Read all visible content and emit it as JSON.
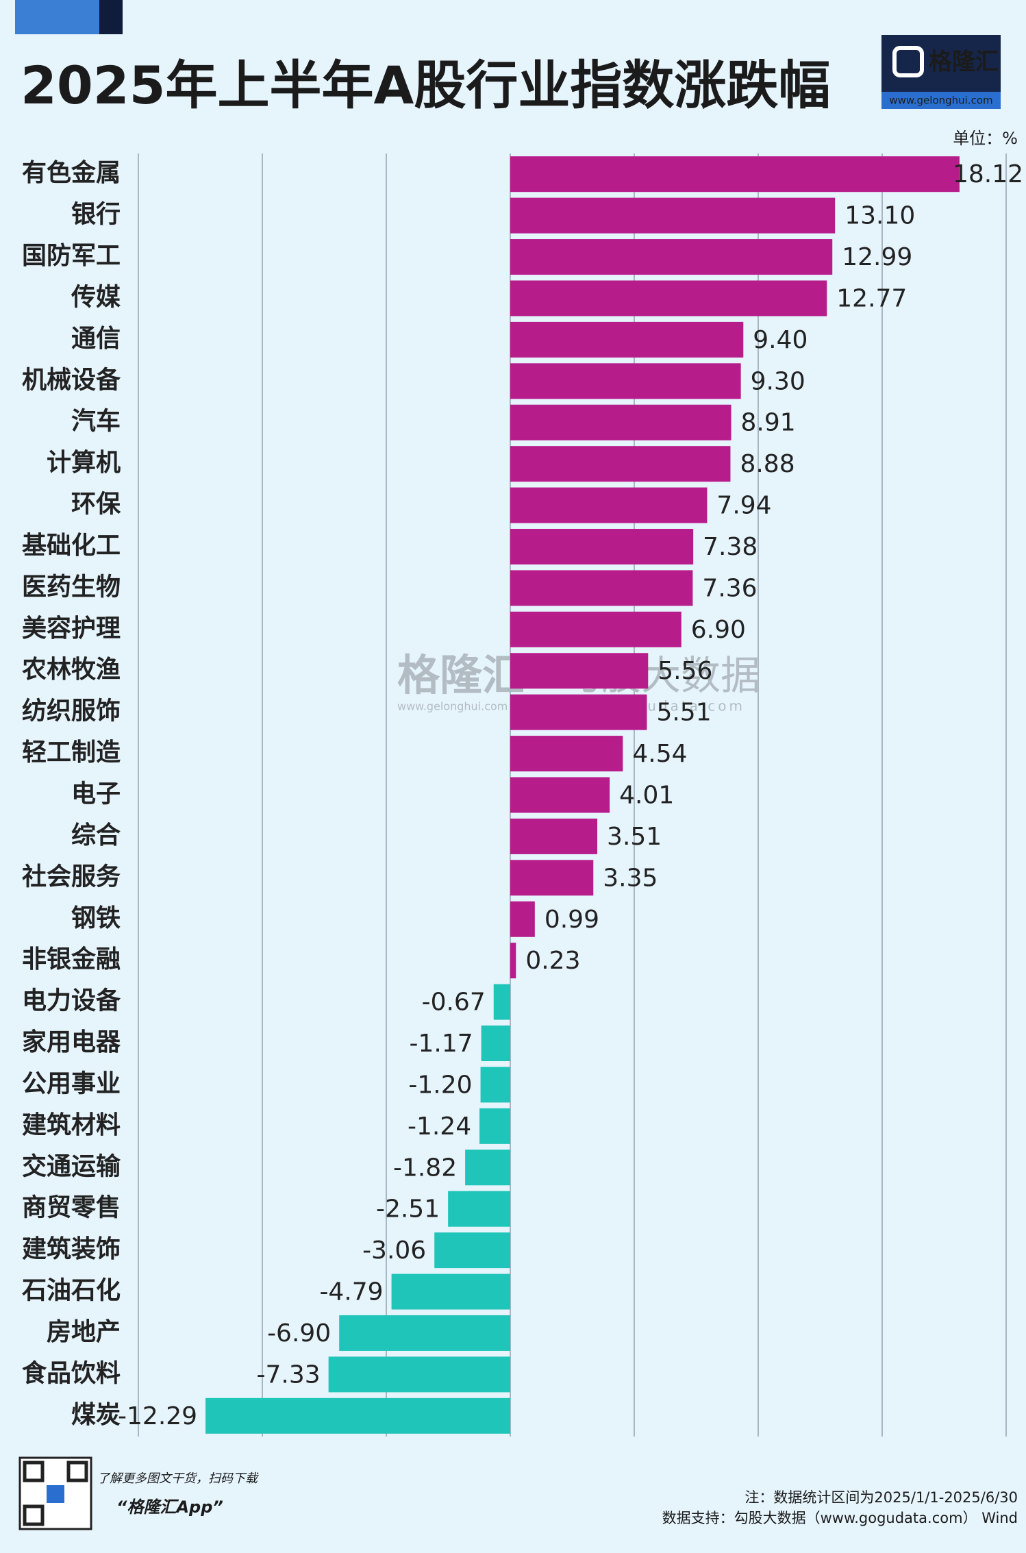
{
  "chart_data": {
    "type": "barh",
    "title": "2025年上半年A股行业指数涨跌幅",
    "unit": "单位：%",
    "categories": [
      "有色金属",
      "银行",
      "国防军工",
      "传媒",
      "通信",
      "机械设备",
      "汽车",
      "计算机",
      "环保",
      "基础化工",
      "医药生物",
      "美容护理",
      "农林牧渔",
      "纺织服饰",
      "轻工制造",
      "电子",
      "综合",
      "社会服务",
      "钢铁",
      "非银金融",
      "电力设备",
      "家用电器",
      "公用事业",
      "建筑材料",
      "交通运输",
      "商贸零售",
      "建筑装饰",
      "石油石化",
      "房地产",
      "食品饮料",
      "煤炭"
    ],
    "values": [
      18.12,
      13.1,
      12.99,
      12.77,
      9.4,
      9.3,
      8.91,
      8.88,
      7.94,
      7.38,
      7.36,
      6.9,
      5.56,
      5.51,
      4.54,
      4.01,
      3.51,
      3.35,
      0.99,
      0.23,
      -0.67,
      -1.17,
      -1.2,
      -1.24,
      -1.82,
      -2.51,
      -3.06,
      -4.79,
      -6.9,
      -7.33,
      -12.29
    ],
    "value_labels": [
      "18.12",
      "13.10",
      "12.99",
      "12.77",
      "9.40",
      "9.30",
      "8.91",
      "8.88",
      "7.94",
      "7.38",
      "7.36",
      "6.90",
      "5.56",
      "5.51",
      "4.54",
      "4.01",
      "3.51",
      "3.35",
      "0.99",
      "0.23",
      "-0.67",
      "-1.17",
      "-1.20",
      "-1.24",
      "-1.82",
      "-2.51",
      "-3.06",
      "-4.79",
      "-6.90",
      "-7.33",
      "-12.29"
    ],
    "color": "#b71c8b",
    "negative_color": "#1fc5b8",
    "xlim": [
      -15,
      20
    ],
    "xticks": [
      -15,
      -10,
      -5,
      0,
      5,
      10,
      15,
      20
    ],
    "grid": true
  },
  "logo": {
    "name": "格隆汇",
    "url": "www.gelonghui.com"
  },
  "watermark": {
    "left": "格隆汇",
    "left_url": "www.gelonghui.com",
    "right": "勾股大数据",
    "right_url": "www.gogudata.com"
  },
  "footer": {
    "promo": "了解更多图文干货，扫码下载",
    "app": "“格隆汇App”",
    "note": "注：数据统计区间为2025/1/1-2025/6/30",
    "source": "数据支持：勾股大数据（www.gogudata.com） Wind"
  }
}
